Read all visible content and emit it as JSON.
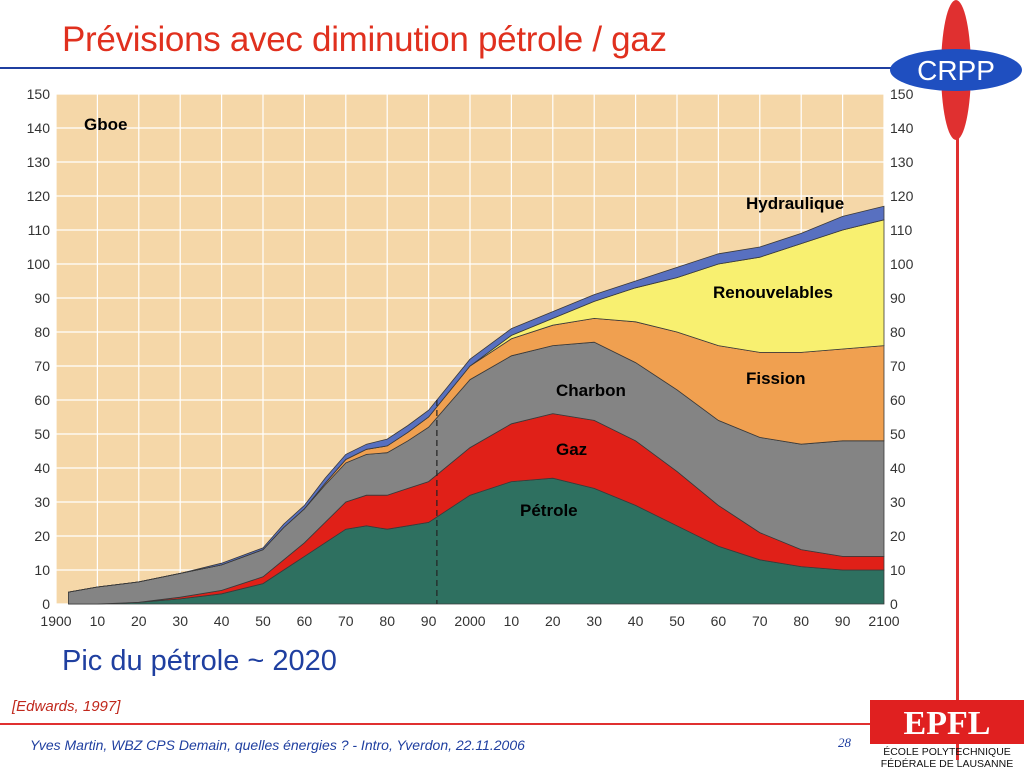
{
  "slide": {
    "title": "Prévisions avec diminution pétrole / gaz",
    "subtitle": "Pic du pétrole ~ 2020",
    "reference": "[Edwards, 1997]",
    "footer": "Yves Martin, WBZ CPS Demain, quelles énergies ? - Intro, Yverdon, 22.11.2006",
    "page_number": "28",
    "logo_text": "CRPP",
    "epfl_logo": "EPFL",
    "epfl_line1": "ÉCOLE POLYTECHNIQUE",
    "epfl_line2": "FÉDÉRALE DE LAUSANNE"
  },
  "colors": {
    "title": "#e0301e",
    "accent_blue": "#1f3fa0",
    "petrole": "#2e7060",
    "gaz": "#e02018",
    "charbon": "#848484",
    "fission": "#f0a050",
    "renouvelables": "#f8f070",
    "hydraulique": "#5870c0",
    "plot_bg": "#f5d7a8",
    "grid": "#ffffff"
  },
  "chart_data": {
    "type": "area",
    "stacked": true,
    "unit_label": "Gboe",
    "ylim": [
      0,
      150
    ],
    "y_ticks": [
      0,
      10,
      20,
      30,
      40,
      50,
      60,
      70,
      80,
      90,
      100,
      110,
      120,
      130,
      140,
      150
    ],
    "xlim": [
      1900,
      2100
    ],
    "x_ticks": [
      1900,
      1910,
      1920,
      1930,
      1940,
      1950,
      1960,
      1970,
      1980,
      1990,
      2000,
      2010,
      2020,
      2030,
      2040,
      2050,
      2060,
      2070,
      2080,
      2090,
      2100
    ],
    "x_tick_labels": [
      "1900",
      "10",
      "20",
      "30",
      "40",
      "50",
      "60",
      "70",
      "80",
      "90",
      "2000",
      "10",
      "20",
      "30",
      "40",
      "50",
      "60",
      "70",
      "80",
      "90",
      "2100"
    ],
    "grid": true,
    "vertical_marker_year": 1992,
    "x": [
      1903,
      1910,
      1920,
      1930,
      1940,
      1950,
      1955,
      1960,
      1965,
      1970,
      1975,
      1980,
      1985,
      1990,
      1995,
      2000,
      2010,
      2020,
      2030,
      2040,
      2050,
      2060,
      2070,
      2080,
      2090,
      2100
    ],
    "series": [
      {
        "name": "Pétrole",
        "values": [
          0,
          0,
          0.5,
          1.5,
          3,
          6,
          10,
          14,
          18,
          22,
          23,
          22,
          23,
          24,
          28,
          32,
          36,
          37,
          34,
          29,
          23,
          17,
          13,
          11,
          10,
          10
        ]
      },
      {
        "name": "Gaz",
        "values": [
          0,
          0,
          0,
          0.5,
          1,
          2,
          3,
          4,
          6,
          8,
          9,
          10,
          11,
          12,
          13,
          14,
          17,
          19,
          20,
          19,
          16,
          12,
          8,
          5,
          4,
          4
        ]
      },
      {
        "name": "Charbon",
        "values": [
          3.5,
          5,
          6,
          7,
          7.5,
          8,
          9.5,
          10,
          11,
          11.5,
          12,
          12.5,
          14,
          16,
          18,
          20,
          20,
          20,
          23,
          23,
          24,
          25,
          28,
          31,
          34,
          34
        ]
      },
      {
        "name": "Fission",
        "values": [
          0,
          0,
          0,
          0,
          0,
          0,
          0,
          0,
          0.5,
          1,
          1.5,
          2,
          2.5,
          3,
          3.5,
          4,
          5,
          6,
          7,
          12,
          17,
          22,
          25,
          27,
          27,
          28
        ]
      },
      {
        "name": "Renouvelables",
        "values": [
          0,
          0,
          0,
          0,
          0,
          0,
          0,
          0,
          0,
          0,
          0,
          0,
          0,
          0,
          0,
          0,
          1,
          2,
          5,
          10,
          16,
          24,
          28,
          32,
          35,
          37
        ]
      },
      {
        "name": "Hydraulique",
        "values": [
          0,
          0,
          0,
          0,
          0.5,
          0.5,
          1,
          1,
          1.5,
          1.5,
          1.5,
          2,
          2,
          2,
          2,
          2,
          2,
          2,
          2,
          2,
          3,
          3,
          3,
          3,
          4,
          4
        ]
      }
    ],
    "annotations": [
      {
        "text": "Gboe"
      },
      {
        "text": "Hydraulique"
      },
      {
        "text": "Renouvelables"
      },
      {
        "text": "Fission"
      },
      {
        "text": "Charbon"
      },
      {
        "text": "Gaz"
      },
      {
        "text": "Pétrole"
      }
    ]
  }
}
